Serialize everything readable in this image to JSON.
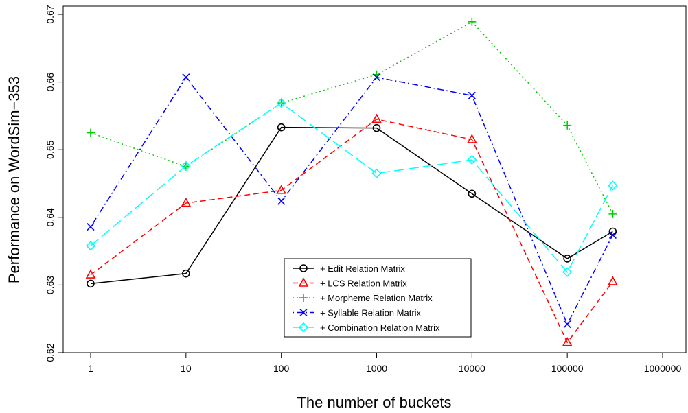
{
  "chart_data": {
    "type": "line",
    "xlabel": "The number of buckets",
    "ylabel": "Performance on WordSim−353",
    "x_scale": "log",
    "xlim": [
      1,
      1000000
    ],
    "ylim": [
      0.62,
      0.67
    ],
    "x_ticks": [
      1,
      10,
      100,
      1000,
      10000,
      100000,
      1000000
    ],
    "x_tick_labels": [
      "1",
      "10",
      "100",
      "1000",
      "10000",
      "100000",
      "1000000"
    ],
    "y_ticks": [
      0.62,
      0.63,
      0.64,
      0.65,
      0.66,
      0.67
    ],
    "y_tick_labels": [
      "0.62",
      "0.63",
      "0.64",
      "0.65",
      "0.66",
      "0.67"
    ],
    "x": [
      1,
      10,
      100,
      1000,
      10000,
      100000,
      300000
    ],
    "grid": false,
    "legend_position": "bottom-center",
    "series": [
      {
        "name": "+ Edit Relation Matrix",
        "color": "#000000",
        "marker": "circle",
        "dash": "solid",
        "values": [
          0.6302,
          0.6317,
          0.6533,
          0.6532,
          0.6435,
          0.6339,
          0.6379
        ]
      },
      {
        "name": "+ LCS Relation Matrix",
        "color": "#ff0000",
        "marker": "triangle",
        "dash": "dashed",
        "values": [
          0.6315,
          0.6421,
          0.644,
          0.6545,
          0.6515,
          0.6215,
          0.6305
        ]
      },
      {
        "name": "+ Morpheme Relation Matrix",
        "color": "#00cd00",
        "marker": "plus",
        "dash": "dotted",
        "values": [
          0.6525,
          0.6475,
          0.6569,
          0.6611,
          0.6689,
          0.6536,
          0.6405
        ]
      },
      {
        "name": "+ Syllable Relation Matrix",
        "color": "#0000ff",
        "marker": "x",
        "dash": "dotdash",
        "values": [
          0.6386,
          0.6607,
          0.6424,
          0.6607,
          0.658,
          0.6242,
          0.6374
        ]
      },
      {
        "name": "+ Combination Relation Matrix",
        "color": "#00ffff",
        "marker": "diamond",
        "dash": "longdash",
        "values": [
          0.6358,
          0.6476,
          0.6569,
          0.6465,
          0.6485,
          0.6319,
          0.6447
        ]
      }
    ]
  }
}
